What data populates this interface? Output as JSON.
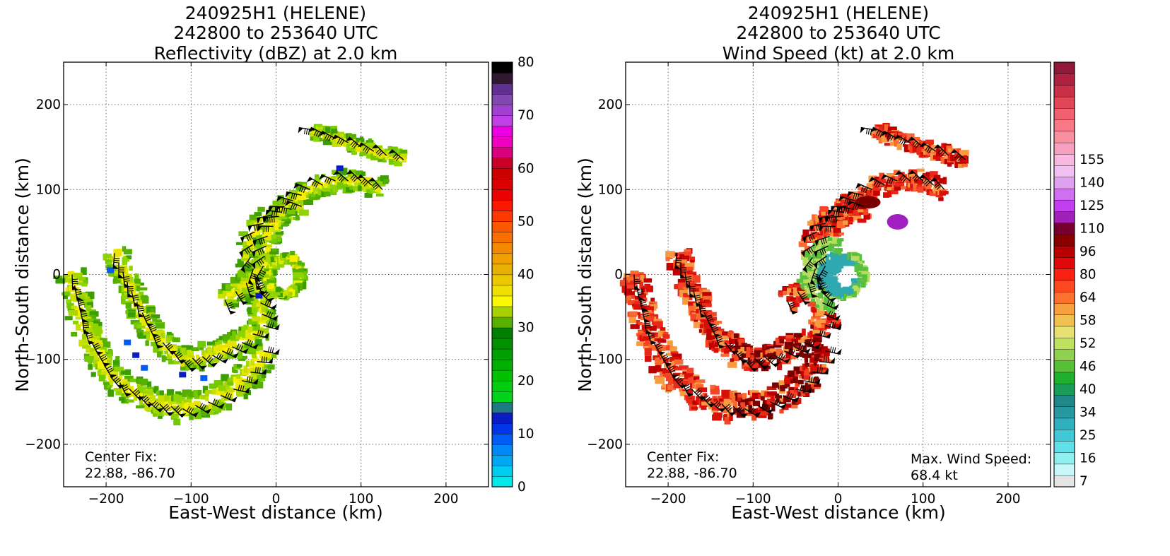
{
  "chart_data": [
    {
      "type": "heatmap",
      "title_lines": [
        "240925H1 (HELENE)",
        "242800 to 253640 UTC",
        "Reflectivity (dBZ) at 2.0 km"
      ],
      "xlabel": "East-West distance (km)",
      "ylabel": "North-South distance (km)",
      "xlim": [
        -250,
        250
      ],
      "ylim": [
        -250,
        250
      ],
      "xticks": [
        -200,
        -100,
        0,
        100,
        200
      ],
      "yticks": [
        -200,
        -100,
        0,
        100,
        200
      ],
      "grid": true,
      "colorbar": {
        "range": [
          0,
          80
        ],
        "ticks": [
          0,
          10,
          20,
          30,
          40,
          50,
          60,
          70,
          80
        ],
        "colors": [
          "#00e8e8",
          "#00ccf0",
          "#00a8f4",
          "#0088f8",
          "#005cf4",
          "#0036e8",
          "#0a1cc4",
          "#1e7a82",
          "#00d418",
          "#00cc10",
          "#00c000",
          "#00b000",
          "#00a000",
          "#009000",
          "#008000",
          "#5ab000",
          "#a8d000",
          "#f8f800",
          "#f0e000",
          "#ecc800",
          "#e8b000",
          "#f0a000",
          "#f48800",
          "#f87000",
          "#fc5800",
          "#fc3800",
          "#fc1800",
          "#ec0000",
          "#dc0000",
          "#cc0000",
          "#c80028",
          "#d8007c",
          "#f000c0",
          "#e800e0",
          "#c040e8",
          "#a040d0",
          "#8048b0",
          "#603090",
          "#301830",
          "#000000"
        ]
      },
      "annotation": [
        "Center Fix:",
        "22.88, -86.70"
      ],
      "palette": [
        "#3c9e00",
        "#55b000",
        "#74c800",
        "#8ed400",
        "#a8d800",
        "#c8e000",
        "#e6e400",
        "#f4f000"
      ]
    },
    {
      "type": "heatmap",
      "title_lines": [
        "240925H1 (HELENE)",
        "242800 to 253640 UTC",
        "Wind Speed (kt) at 2.0 km"
      ],
      "xlabel": "East-West distance (km)",
      "ylabel": "North-South distance (km)",
      "xlim": [
        -250,
        250
      ],
      "ylim": [
        -250,
        250
      ],
      "xticks": [
        -200,
        -100,
        0,
        100,
        200
      ],
      "yticks": [
        -200,
        -100,
        0,
        100,
        200
      ],
      "grid": true,
      "colorbar": {
        "tick_labels": [
          "7",
          "16",
          "25",
          "34",
          "40",
          "46",
          "52",
          "58",
          "64",
          "80",
          "96",
          "110",
          "125",
          "140",
          "155"
        ],
        "tick_bins": [
          0,
          2,
          4,
          6,
          8,
          10,
          12,
          14,
          16,
          18,
          20,
          22,
          24,
          26,
          28
        ],
        "colors": [
          "#e4e4e4",
          "#c8f8f8",
          "#90f0f0",
          "#60e0e8",
          "#40c8d4",
          "#30b0bc",
          "#2898a0",
          "#208888",
          "#189c58",
          "#20b030",
          "#58c038",
          "#90d050",
          "#c0e060",
          "#e8e070",
          "#f0c050",
          "#f8a040",
          "#fc7030",
          "#fc4820",
          "#f82010",
          "#e00808",
          "#b80000",
          "#880000",
          "#780030",
          "#a020b8",
          "#c040f0",
          "#d070f0",
          "#e0a0f0",
          "#f0c0f0",
          "#f8b8e0",
          "#f8a0c0",
          "#f890a0",
          "#f87888",
          "#f06070",
          "#e04858",
          "#c83048",
          "#b02040",
          "#901838"
        ]
      },
      "annotation": [
        "Center Fix:",
        "22.88, -86.70"
      ],
      "max_wind_label": [
        "Max. Wind Speed:",
        "68.4 kt"
      ],
      "palette": [
        "#c00000",
        "#d81008",
        "#e82818",
        "#f44424",
        "#f86a30",
        "#f89a40",
        "#f0d060",
        "#b8dc60",
        "#58c03c",
        "#30a8b0",
        "#7a0000",
        "#a020c0"
      ]
    }
  ]
}
